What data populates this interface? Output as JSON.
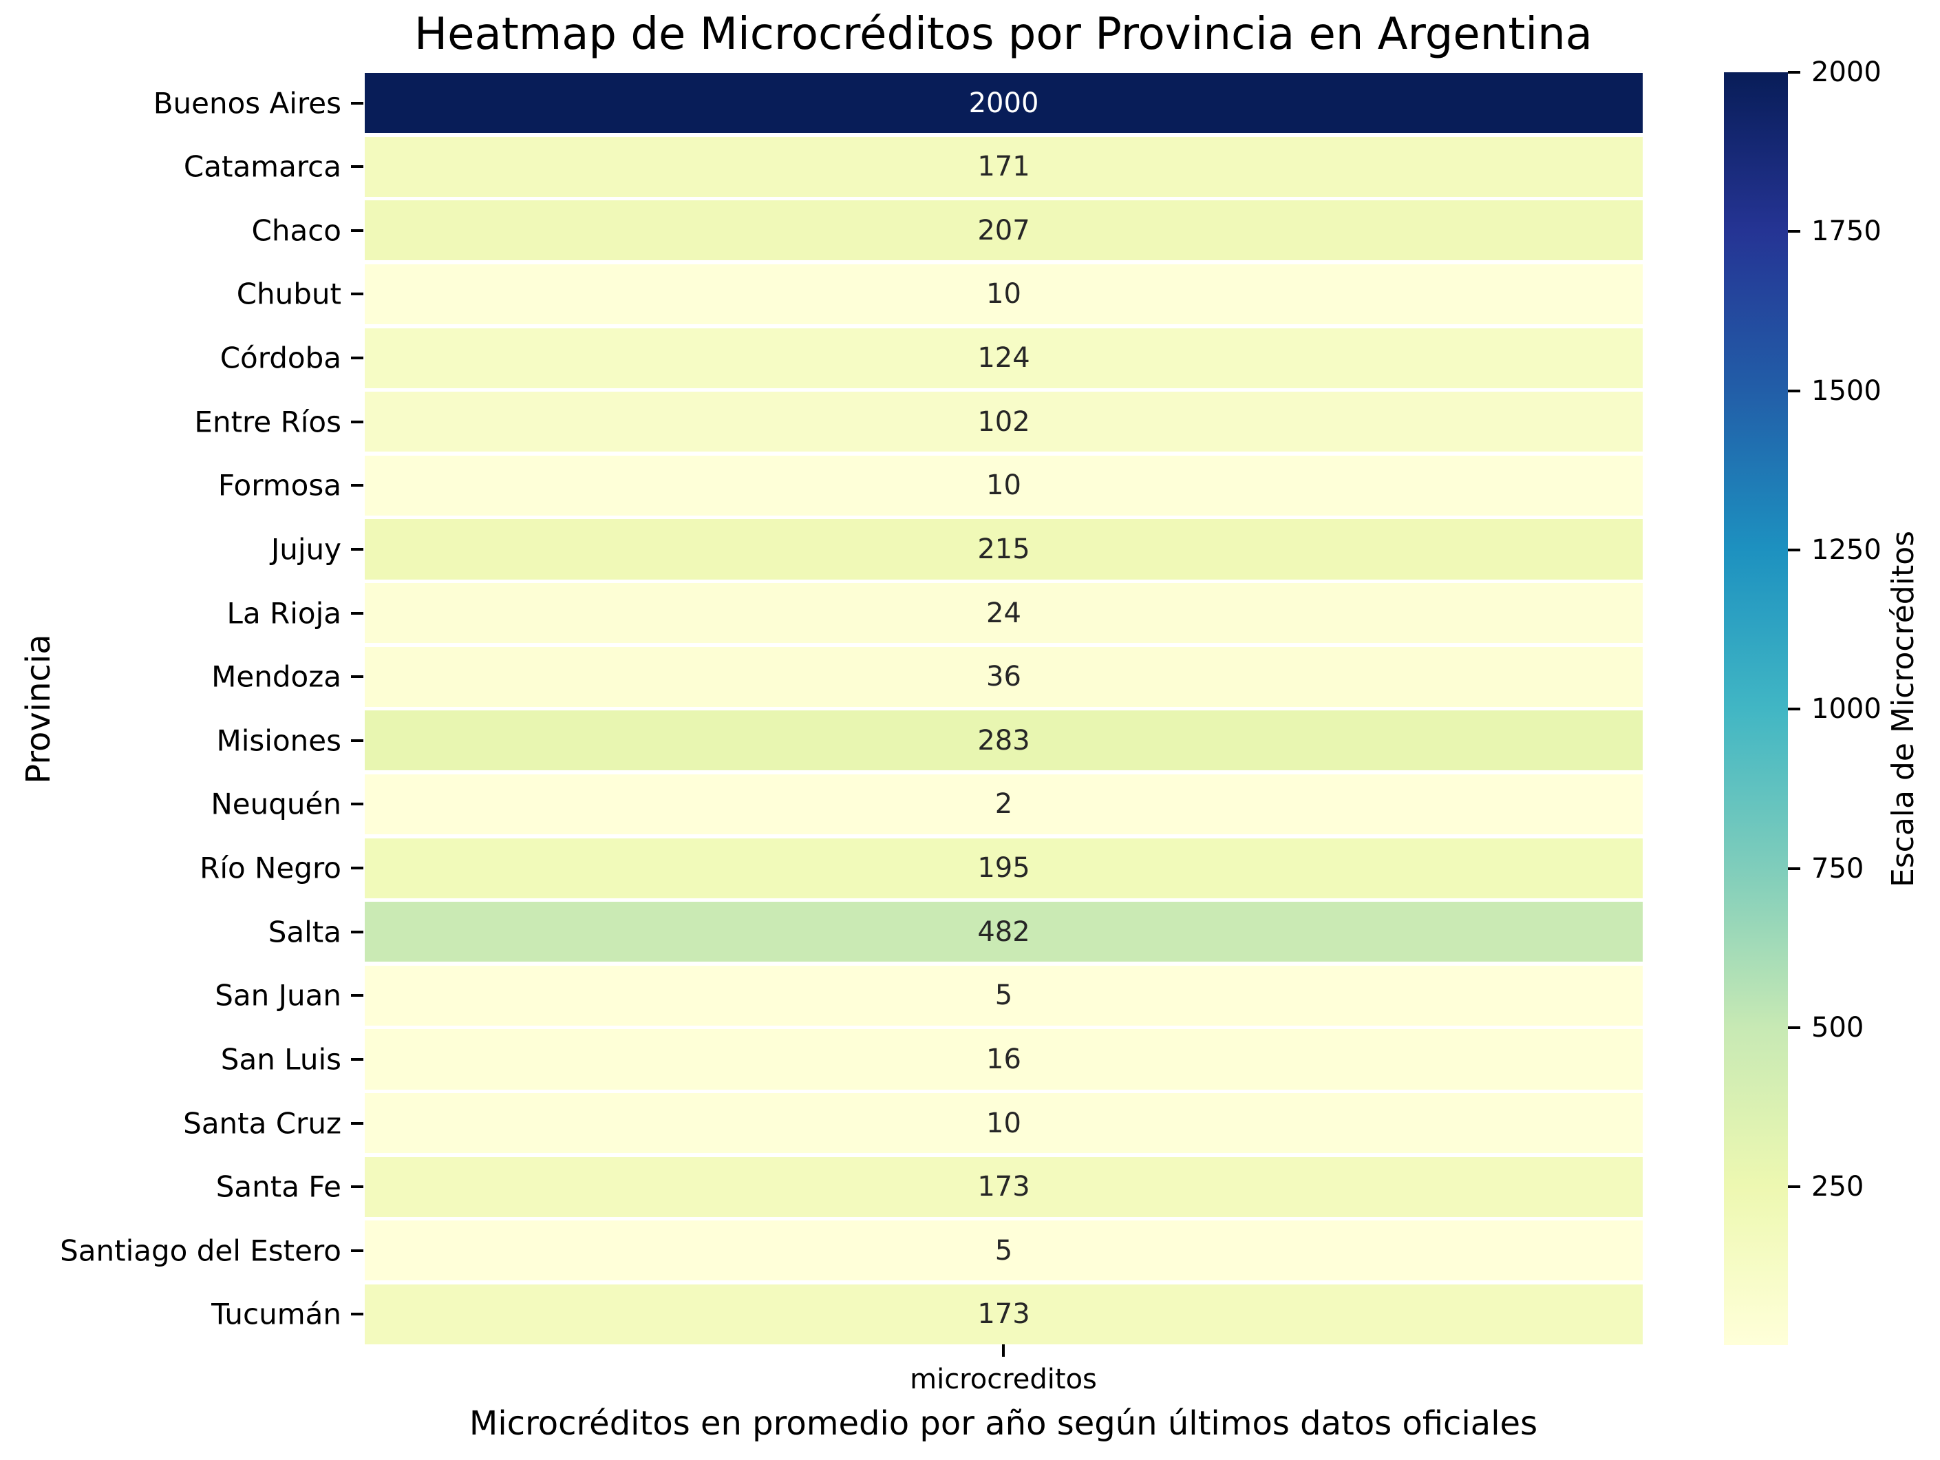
{
  "chart_data": {
    "type": "heatmap",
    "title": "Heatmap de Microcréditos por Provincia en Argentina",
    "xlabel": "Microcréditos en promedio por año según últimos datos oficiales",
    "ylabel": "Provincia",
    "columns": [
      "microcreditos"
    ],
    "categories": [
      "Buenos Aires",
      "Catamarca",
      "Chaco",
      "Chubut",
      "Córdoba",
      "Entre Ríos",
      "Formosa",
      "Jujuy",
      "La Rioja",
      "Mendoza",
      "Misiones",
      "Neuquén",
      "Río Negro",
      "Salta",
      "San Juan",
      "San Luis",
      "Santa Cruz",
      "Santa Fe",
      "Santiago del Estero",
      "Tucumán"
    ],
    "values": [
      2000,
      171,
      207,
      10,
      124,
      102,
      10,
      215,
      24,
      36,
      283,
      2,
      195,
      482,
      5,
      16,
      10,
      173,
      5,
      173
    ],
    "annotated": true,
    "vmin": 2,
    "vmax": 2000,
    "grid_line_color": "#ffffff",
    "annot_color_dark": "#262626",
    "annot_color_light": "#ffffff",
    "colormap": {
      "name": "YlGnBu",
      "stops": [
        [
          0.0,
          "#ffffd9"
        ],
        [
          0.125,
          "#edf8b1"
        ],
        [
          0.25,
          "#c7e9b4"
        ],
        [
          0.375,
          "#7fcdbb"
        ],
        [
          0.5,
          "#41b6c4"
        ],
        [
          0.625,
          "#1d91c0"
        ],
        [
          0.75,
          "#225ea8"
        ],
        [
          0.875,
          "#253494"
        ],
        [
          1.0,
          "#081d58"
        ]
      ]
    },
    "colorbar": {
      "label": "Escala de Microcréditos",
      "ticks": [
        2000,
        1750,
        1500,
        1250,
        1000,
        750,
        500,
        250
      ]
    },
    "legend": "colorbar-right",
    "grid": false
  }
}
